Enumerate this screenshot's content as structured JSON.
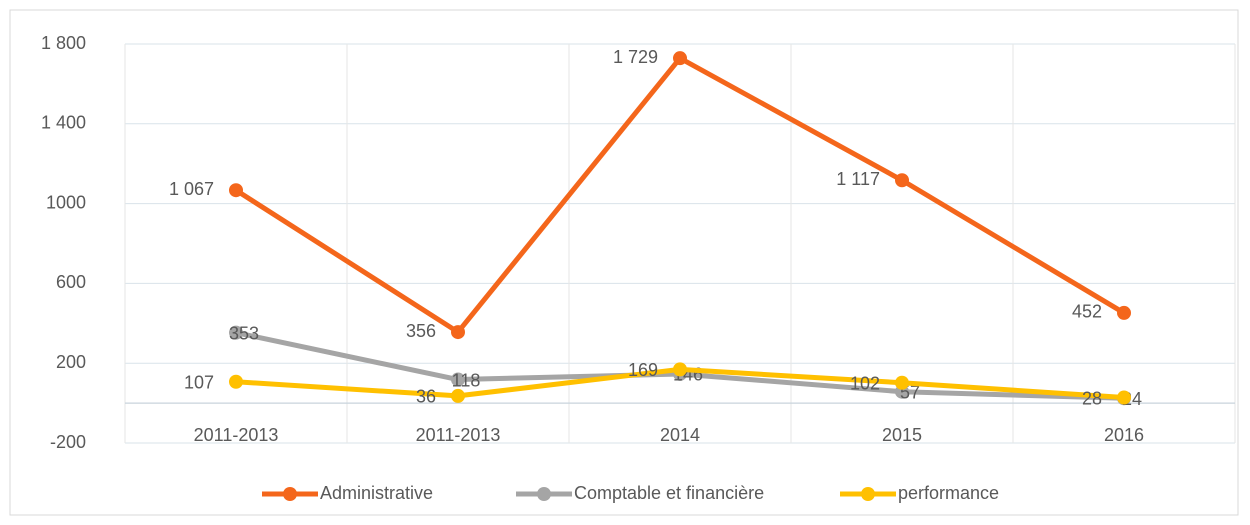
{
  "chart_data": {
    "type": "line",
    "categories": [
      "2011-2013",
      "2011-2013",
      "2014",
      "2015",
      "2016"
    ],
    "series": [
      {
        "name": "Administrative",
        "color": "#F4661B",
        "values": [
          1067,
          356,
          1729,
          1117,
          452
        ],
        "value_labels": [
          "1 067",
          "356",
          "1 729",
          "1 117",
          "452"
        ]
      },
      {
        "name": "Comptable et financière",
        "color": "#A5A5A5",
        "values": [
          353,
          118,
          146,
          57,
          24
        ]
      },
      {
        "name": "performance",
        "color": "#FFC000",
        "values": [
          107,
          36,
          169,
          102,
          28
        ]
      }
    ],
    "ylim": [
      -200,
      1800
    ],
    "yticks": [
      -200,
      200,
      600,
      1000,
      {
        "value": 1400,
        "label": "1 400"
      },
      {
        "value": 1800,
        "label": "1 800"
      }
    ],
    "grid": true,
    "legend": "bottom"
  }
}
